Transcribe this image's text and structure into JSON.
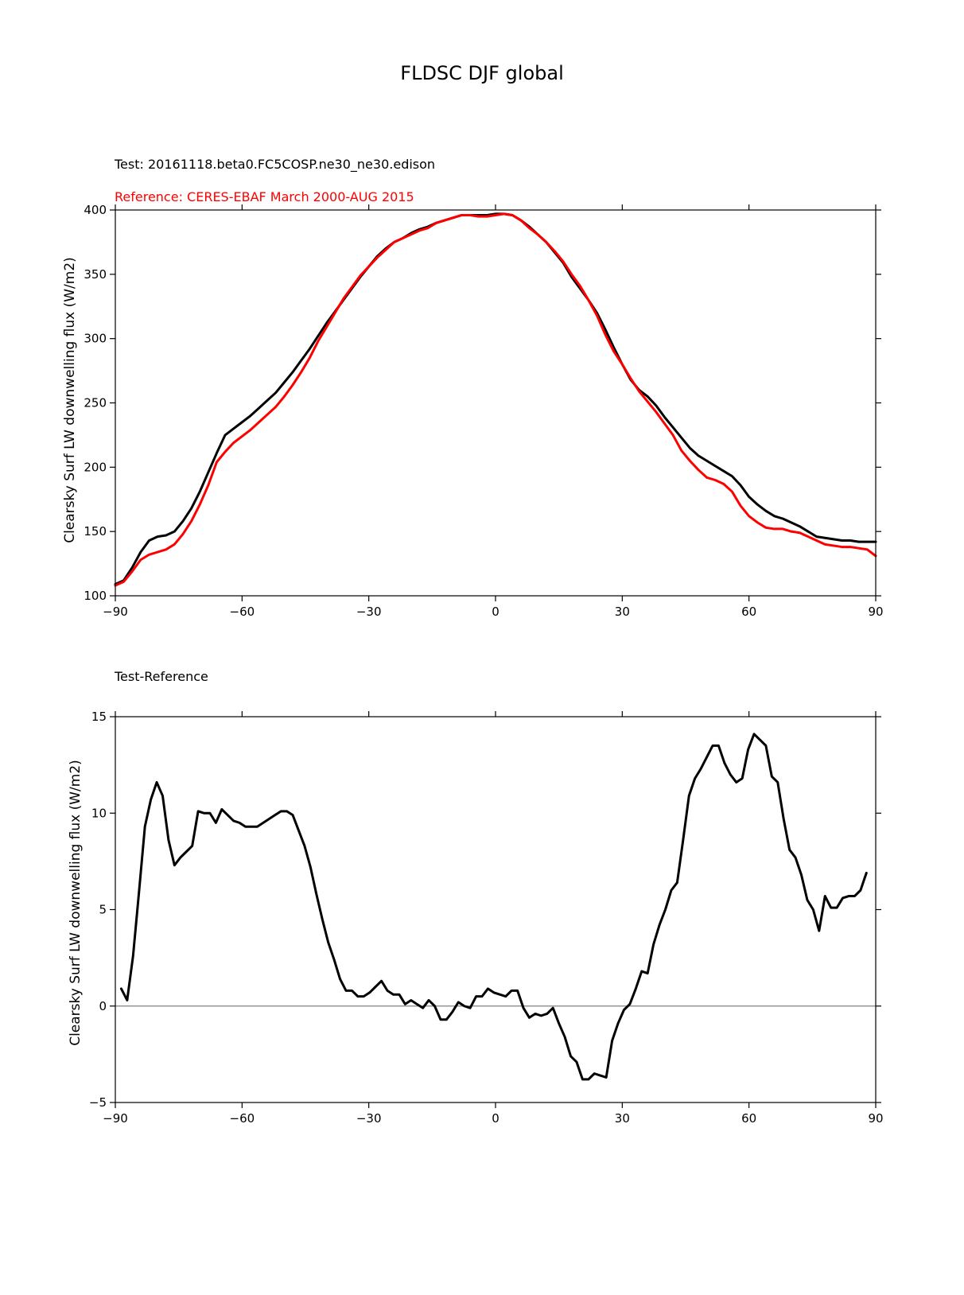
{
  "figure_title": "FLDSC DJF global",
  "colors": {
    "test": "#000000",
    "reference": "#ff0000",
    "zero_line": "#808080",
    "axes": "#000000"
  },
  "chart_data": [
    {
      "type": "line",
      "title": "",
      "test_label": "Test: 20161118.beta0.FC5COSP.ne30_ne30.edison",
      "reference_label": "Reference: CERES-EBAF March 2000-AUG 2015",
      "xlabel": "",
      "ylabel": "Clearsky Surf LW downwelling flux (W/m2)",
      "xlim": [
        -90,
        90
      ],
      "ylim": [
        100,
        400
      ],
      "xticks": [
        -90,
        -60,
        -30,
        0,
        30,
        60,
        90
      ],
      "xtick_labels": [
        "−90",
        "−60",
        "−30",
        "0",
        "30",
        "60",
        "90"
      ],
      "yticks": [
        100,
        150,
        200,
        250,
        300,
        350,
        400
      ],
      "ytick_labels": [
        "100",
        "150",
        "200",
        "250",
        "300",
        "350",
        "400"
      ],
      "grid": false,
      "series": [
        {
          "role": "test",
          "x": [
            -90,
            -88,
            -86,
            -84,
            -82,
            -80,
            -78,
            -76,
            -74,
            -72,
            -70,
            -68,
            -66,
            -64,
            -62,
            -60,
            -58,
            -56,
            -54,
            -52,
            -50,
            -48,
            -46,
            -44,
            -42,
            -40,
            -38,
            -36,
            -34,
            -32,
            -30,
            -28,
            -26,
            -24,
            -22,
            -20,
            -18,
            -16,
            -14,
            -12,
            -10,
            -8,
            -6,
            -4,
            -2,
            0,
            2,
            4,
            6,
            8,
            10,
            12,
            14,
            16,
            18,
            20,
            22,
            24,
            26,
            28,
            30,
            32,
            34,
            36,
            38,
            40,
            42,
            44,
            46,
            48,
            50,
            52,
            54,
            56,
            58,
            60,
            62,
            64,
            66,
            68,
            70,
            72,
            74,
            76,
            78,
            80,
            82,
            84,
            86,
            88,
            90
          ],
          "y": [
            109,
            112,
            122,
            134,
            143,
            146,
            147,
            150,
            158,
            168,
            181,
            196,
            211,
            225,
            230,
            235,
            240,
            246,
            252,
            258,
            266,
            274,
            283,
            292,
            302,
            312,
            321,
            330,
            339,
            348,
            356,
            364,
            370,
            375,
            378,
            382,
            385,
            387,
            390,
            392,
            394,
            396,
            396,
            396,
            396,
            397,
            397,
            396,
            392,
            387,
            381,
            375,
            367,
            359,
            348,
            339,
            330,
            320,
            307,
            293,
            280,
            268,
            260,
            255,
            248,
            239,
            231,
            223,
            215,
            209,
            205,
            201,
            197,
            193,
            186,
            177,
            171,
            166,
            162,
            160,
            157,
            154,
            150,
            146,
            145,
            144,
            143,
            143,
            142,
            142,
            142
          ]
        },
        {
          "role": "reference",
          "x": [
            -90,
            -88,
            -86,
            -84,
            -82,
            -80,
            -78,
            -76,
            -74,
            -72,
            -70,
            -68,
            -66,
            -64,
            -62,
            -60,
            -58,
            -56,
            -54,
            -52,
            -50,
            -48,
            -46,
            -44,
            -42,
            -40,
            -38,
            -36,
            -34,
            -32,
            -30,
            -28,
            -26,
            -24,
            -22,
            -20,
            -18,
            -16,
            -14,
            -12,
            -10,
            -8,
            -6,
            -4,
            -2,
            0,
            2,
            4,
            6,
            8,
            10,
            12,
            14,
            16,
            18,
            20,
            22,
            24,
            26,
            28,
            30,
            32,
            34,
            36,
            38,
            40,
            42,
            44,
            46,
            48,
            50,
            52,
            54,
            56,
            58,
            60,
            62,
            64,
            66,
            68,
            70,
            72,
            74,
            76,
            78,
            80,
            82,
            84,
            86,
            88,
            90
          ],
          "y": [
            108,
            111,
            119,
            128,
            132,
            134,
            136,
            140,
            148,
            158,
            171,
            186,
            204,
            212,
            219,
            224,
            229,
            235,
            241,
            247,
            255,
            264,
            274,
            285,
            298,
            309,
            320,
            331,
            340,
            349,
            356,
            363,
            369,
            375,
            378,
            381,
            384,
            386,
            390,
            392,
            394,
            396,
            396,
            395,
            395,
            396,
            397,
            396,
            392,
            386,
            381,
            375,
            368,
            360,
            350,
            341,
            330,
            318,
            303,
            290,
            280,
            269,
            259,
            251,
            243,
            234,
            225,
            213,
            205,
            198,
            192,
            190,
            187,
            181,
            170,
            162,
            157,
            153,
            152,
            152,
            150,
            149,
            146,
            143,
            140,
            139,
            138,
            138,
            137,
            136,
            131
          ]
        }
      ]
    },
    {
      "type": "line",
      "title": "Test-Reference",
      "xlabel": "",
      "ylabel": "Clearsky Surf LW downwelling flux (W/m2)",
      "xlim": [
        -90,
        90
      ],
      "ylim": [
        -5,
        15
      ],
      "xticks": [
        -90,
        -60,
        -30,
        0,
        30,
        60,
        90
      ],
      "xtick_labels": [
        "−90",
        "−60",
        "−30",
        "0",
        "30",
        "60",
        "90"
      ],
      "yticks": [
        -5,
        0,
        5,
        10,
        15
      ],
      "ytick_labels": [
        "−5",
        "0",
        "5",
        "10",
        "15"
      ],
      "grid": false,
      "zero_line": true,
      "series": [
        {
          "role": "difference",
          "x": [
            -88.6,
            -87.2,
            -85.8,
            -84.4,
            -83.0,
            -81.6,
            -80.2,
            -78.8,
            -77.4,
            -76.0,
            -74.6,
            -73.2,
            -71.8,
            -70.4,
            -69.0,
            -67.6,
            -66.2,
            -64.8,
            -63.4,
            -62.0,
            -60.6,
            -59.2,
            -57.8,
            -56.4,
            -55.0,
            -53.6,
            -52.2,
            -50.8,
            -49.4,
            -48.0,
            -46.6,
            -45.2,
            -43.8,
            -42.4,
            -41.0,
            -39.6,
            -38.2,
            -36.8,
            -35.4,
            -34.0,
            -32.6,
            -31.2,
            -29.8,
            -28.4,
            -27.0,
            -25.6,
            -24.2,
            -22.8,
            -21.4,
            -20.0,
            -18.6,
            -17.2,
            -15.8,
            -14.4,
            -13.0,
            -11.6,
            -10.2,
            -8.8,
            -7.4,
            -6.0,
            -4.6,
            -3.2,
            -1.8,
            -0.4,
            1.0,
            2.4,
            3.8,
            5.2,
            6.6,
            8.0,
            9.4,
            10.8,
            12.2,
            13.6,
            15.0,
            16.4,
            17.8,
            19.2,
            20.6,
            22.0,
            23.4,
            24.8,
            26.2,
            27.6,
            29.0,
            30.4,
            31.8,
            33.2,
            34.6,
            36.0,
            37.4,
            38.8,
            40.2,
            41.6,
            43.0,
            44.4,
            45.8,
            47.2,
            48.6,
            50.0,
            51.4,
            52.8,
            54.2,
            55.6,
            57.0,
            58.4,
            59.8,
            61.2,
            62.6,
            64.0,
            65.4,
            66.8,
            68.2,
            69.6,
            71.0,
            72.4,
            73.8,
            75.2,
            76.6,
            78.0,
            79.4,
            80.8,
            82.2,
            83.6,
            85.0,
            86.4,
            87.8
          ],
          "y": [
            0.9,
            0.3,
            2.6,
            5.9,
            9.3,
            10.7,
            11.6,
            10.9,
            8.6,
            7.3,
            7.7,
            8.0,
            8.3,
            10.1,
            10.0,
            10.0,
            9.5,
            10.2,
            9.9,
            9.6,
            9.5,
            9.3,
            9.3,
            9.3,
            9.5,
            9.7,
            9.9,
            10.1,
            10.1,
            9.9,
            9.1,
            8.3,
            7.2,
            5.8,
            4.5,
            3.3,
            2.4,
            1.4,
            0.8,
            0.8,
            0.5,
            0.5,
            0.7,
            1.0,
            1.3,
            0.8,
            0.6,
            0.6,
            0.1,
            0.3,
            0.1,
            -0.1,
            0.3,
            0.0,
            -0.7,
            -0.7,
            -0.3,
            0.2,
            0.0,
            -0.1,
            0.5,
            0.5,
            0.9,
            0.7,
            0.6,
            0.5,
            0.8,
            0.8,
            -0.1,
            -0.6,
            -0.4,
            -0.5,
            -0.4,
            -0.1,
            -0.9,
            -1.6,
            -2.6,
            -2.9,
            -3.8,
            -3.8,
            -3.5,
            -3.6,
            -3.7,
            -1.8,
            -0.9,
            -0.2,
            0.1,
            0.9,
            1.8,
            1.7,
            3.2,
            4.2,
            5.0,
            6.0,
            6.4,
            8.6,
            10.9,
            11.8,
            12.3,
            12.9,
            13.5,
            13.5,
            12.6,
            12.0,
            11.6,
            11.8,
            13.3,
            14.1,
            13.8,
            13.5,
            11.9,
            11.6,
            9.7,
            8.1,
            7.7,
            6.8,
            5.5,
            5.0,
            3.9,
            5.7,
            5.1,
            5.1,
            5.6,
            5.7,
            5.7,
            6.0,
            6.9
          ]
        }
      ]
    }
  ]
}
